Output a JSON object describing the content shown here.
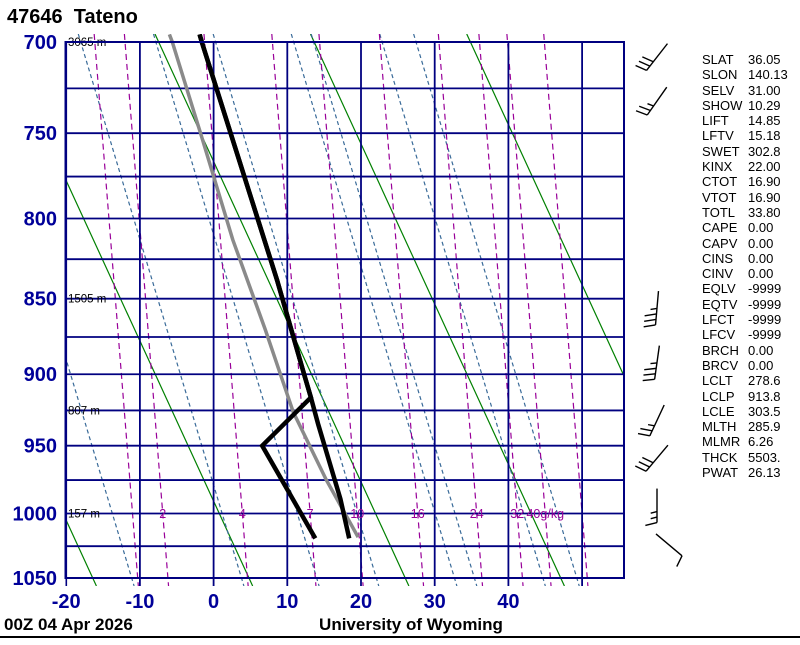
{
  "title": "47646  Tateno",
  "footer": {
    "datetime": "00Z 04 Apr 2026",
    "credit": "University of Wyoming"
  },
  "colors": {
    "grid": "#000080",
    "axis_label": "#000099",
    "dry_adiabat": "#008000",
    "moist_adiabat": "#3A6B99",
    "mixing_ratio": "#990099",
    "temperature": "#000000",
    "dewpoint": "#000000",
    "parcel": "#8a8a8a",
    "text": "#000000"
  },
  "chart_data": {
    "type": "line",
    "x_axis": {
      "unit": "C",
      "ticks": [
        -20,
        -10,
        0,
        10,
        20,
        30,
        40
      ],
      "min": -20,
      "max": 55.7
    },
    "y_axis": {
      "unit": "hPa",
      "scale": "log",
      "labels": [
        700,
        750,
        800,
        850,
        900,
        950,
        1000,
        1050
      ],
      "grid_step": 25,
      "min": 700,
      "max": 1050
    },
    "height_labels": [
      {
        "pressure": 700,
        "text": "3065 m"
      },
      {
        "pressure": 850,
        "text": "1505 m"
      },
      {
        "pressure": 925,
        "text": "807 m"
      },
      {
        "pressure": 1000,
        "text": "157 m"
      }
    ],
    "series": [
      {
        "name": "temperature",
        "color_key": "temperature",
        "width": 4.5,
        "points_p_t": [
          [
            696,
            -1.9
          ],
          [
            700,
            -1.6
          ],
          [
            838,
            8.6
          ],
          [
            897,
            12.1
          ],
          [
            916,
            13.2
          ],
          [
            935,
            14.2
          ],
          [
            989,
            17.2
          ],
          [
            1019,
            18.4
          ]
        ]
      },
      {
        "name": "dewpoint",
        "color_key": "dewpoint",
        "width": 4.5,
        "points_p_t": [
          [
            696,
            -1.9
          ],
          [
            700,
            -1.6
          ],
          [
            838,
            8.6
          ],
          [
            897,
            12.1
          ],
          [
            916,
            13.2
          ],
          [
            950,
            6.6
          ],
          [
            1019,
            13.8
          ]
        ]
      },
      {
        "name": "parcel",
        "color_key": "parcel",
        "width": 3.5,
        "points_p_t": [
          [
            696,
            -6.0
          ],
          [
            700,
            -5.6
          ],
          [
            751,
            -1.7
          ],
          [
            813,
            2.6
          ],
          [
            870,
            7.0
          ],
          [
            926,
            10.8
          ],
          [
            975,
            15.3
          ],
          [
            1018,
            19.6
          ]
        ]
      }
    ],
    "guides": {
      "dry_adiabats": {
        "t_at_1050": [
          -16.4,
          4.8,
          26.0,
          47.1,
          68.3
        ]
      },
      "moist_adiabats": {
        "t_at_950": [
          -16.5,
          -1.6,
          8.6,
          16.7,
          27.3,
          30.0,
          39.3,
          43.9
        ]
      },
      "mixing_ratio": {
        "t_at_1000": [
          -11.0,
          -6.9,
          3.9,
          13.1,
          19.5,
          27.7,
          35.7,
          41.2,
          45.0,
          50.0
        ],
        "labels": [
          "",
          "2",
          "4",
          "7",
          "10",
          "16",
          "24",
          "32",
          "40g/kg",
          ""
        ]
      }
    },
    "wind_barbs": [
      {
        "pressure": 708,
        "angle": 38,
        "full": 3,
        "half": 0
      },
      {
        "pressure": 732,
        "angle": 35,
        "full": 2,
        "half": 1
      },
      {
        "pressure": 856,
        "angle": 5,
        "full": 3,
        "half": 1
      },
      {
        "pressure": 892,
        "angle": 8,
        "full": 3,
        "half": 1
      },
      {
        "pressure": 932,
        "angle": 25,
        "full": 2,
        "half": 1
      },
      {
        "pressure": 959,
        "angle": 40,
        "full": 3,
        "half": 0
      },
      {
        "pressure": 994,
        "angle": 0,
        "full": 1,
        "half": 2
      },
      {
        "pressure": 1024,
        "angle": -50,
        "full": 1,
        "half": 0
      }
    ]
  },
  "stats_panel": {
    "rows": [
      [
        "SLAT",
        "36.05"
      ],
      [
        "SLON",
        "140.13"
      ],
      [
        "SELV",
        "31.00"
      ],
      [
        "SHOW",
        "10.29"
      ],
      [
        "LIFT",
        "14.85"
      ],
      [
        "LFTV",
        "15.18"
      ],
      [
        "SWET",
        "302.8"
      ],
      [
        "KINX",
        "22.00"
      ],
      [
        "CTOT",
        "16.90"
      ],
      [
        "VTOT",
        "16.90"
      ],
      [
        "TOTL",
        "33.80"
      ],
      [
        "CAPE",
        "0.00"
      ],
      [
        "CAPV",
        "0.00"
      ],
      [
        "CINS",
        "0.00"
      ],
      [
        "CINV",
        "0.00"
      ],
      [
        "EQLV",
        "-9999"
      ],
      [
        "EQTV",
        "-9999"
      ],
      [
        "LFCT",
        "-9999"
      ],
      [
        "LFCV",
        "-9999"
      ],
      [
        "BRCH",
        "0.00"
      ],
      [
        "BRCV",
        "0.00"
      ],
      [
        "LCLT",
        "278.6"
      ],
      [
        "LCLP",
        "913.8"
      ],
      [
        "LCLE",
        "303.5"
      ],
      [
        "MLTH",
        "285.9"
      ],
      [
        "MLMR",
        "6.26"
      ],
      [
        "THCK",
        "5503."
      ],
      [
        "PWAT",
        "26.13"
      ]
    ]
  }
}
